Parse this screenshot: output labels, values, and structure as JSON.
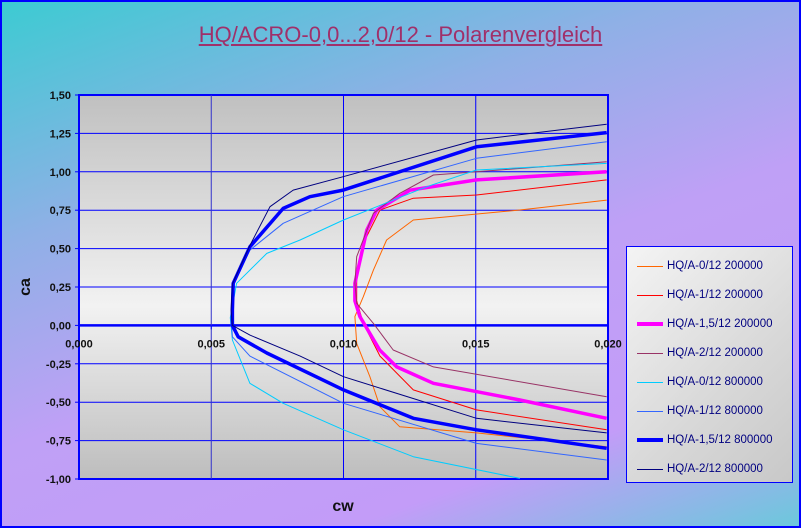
{
  "chart_data": {
    "type": "line",
    "title": "HQ/ACRO-0,0...2,0/12 - Polarenvergleich",
    "xlabel": "cw",
    "ylabel": "ca",
    "xlim": [
      0,
      0.02
    ],
    "ylim": [
      -1.0,
      1.5
    ],
    "xticks": [
      {
        "v": 0,
        "label": "0,000"
      },
      {
        "v": 0.005,
        "label": "0,005"
      },
      {
        "v": 0.01,
        "label": "0,010"
      },
      {
        "v": 0.015,
        "label": "0,015"
      },
      {
        "v": 0.02,
        "label": "0,020"
      }
    ],
    "yticks": [
      {
        "v": 1.5,
        "label": "1,50"
      },
      {
        "v": 1.25,
        "label": "1,25"
      },
      {
        "v": 1.0,
        "label": "1,00"
      },
      {
        "v": 0.75,
        "label": "0,75"
      },
      {
        "v": 0.5,
        "label": "0,50"
      },
      {
        "v": 0.25,
        "label": "0,25"
      },
      {
        "v": 0,
        "label": "0,00"
      },
      {
        "v": -0.25,
        "label": "-0,25"
      },
      {
        "v": -0.5,
        "label": "-0,50"
      },
      {
        "v": -0.75,
        "label": "-0,75"
      },
      {
        "v": -1.0,
        "label": "-1,00"
      }
    ],
    "grid": true,
    "legend_position": "right",
    "series": [
      {
        "name": "HQ/A-0/12 200000",
        "color": "#ff6600",
        "width": 1,
        "points": [
          [
            0.01995,
            0.816
          ],
          [
            0.01667,
            0.751
          ],
          [
            0.01264,
            0.686
          ],
          [
            0.01163,
            0.556
          ],
          [
            0.01113,
            0.36
          ],
          [
            0.01075,
            0.187
          ],
          [
            0.01043,
            0.057
          ],
          [
            0.0105,
            -0.117
          ],
          [
            0.011,
            -0.334
          ],
          [
            0.01138,
            -0.53
          ],
          [
            0.01213,
            -0.66
          ],
          [
            0.01503,
            -0.7
          ],
          [
            0.01995,
            -0.79
          ]
        ]
      },
      {
        "name": "HQ/A-1/12 200000",
        "color": "#ff0000",
        "width": 1,
        "points": [
          [
            0.01995,
            0.947
          ],
          [
            0.01503,
            0.849
          ],
          [
            0.01264,
            0.828
          ],
          [
            0.01138,
            0.751
          ],
          [
            0.01075,
            0.535
          ],
          [
            0.0105,
            0.317
          ],
          [
            0.0105,
            0.16
          ],
          [
            0.01075,
            0.013
          ],
          [
            0.01138,
            -0.2
          ],
          [
            0.01264,
            -0.42
          ],
          [
            0.01503,
            -0.55
          ],
          [
            0.01995,
            -0.68
          ]
        ]
      },
      {
        "name": "HQ/A-1,5/12 200000",
        "color": "#ff00ff",
        "width": 3.5,
        "points": [
          [
            0.01995,
            1.0
          ],
          [
            0.01503,
            0.947
          ],
          [
            0.01251,
            0.88
          ],
          [
            0.01125,
            0.75
          ],
          [
            0.01088,
            0.62
          ],
          [
            0.01043,
            0.274
          ],
          [
            0.01043,
            0.16
          ],
          [
            0.01062,
            0.057
          ],
          [
            0.01137,
            -0.16
          ],
          [
            0.01201,
            -0.27
          ],
          [
            0.0134,
            -0.377
          ],
          [
            0.01667,
            -0.486
          ],
          [
            0.01995,
            -0.605
          ]
        ]
      },
      {
        "name": "HQ/A-2/12 200000",
        "color": "#993366",
        "width": 1,
        "points": [
          [
            0.01995,
            1.066
          ],
          [
            0.01503,
            1.0
          ],
          [
            0.0134,
            0.979
          ],
          [
            0.01213,
            0.86
          ],
          [
            0.01113,
            0.73
          ],
          [
            0.0105,
            0.447
          ],
          [
            0.01043,
            0.274
          ],
          [
            0.0105,
            0.144
          ],
          [
            0.01113,
            0.013
          ],
          [
            0.01188,
            -0.16
          ],
          [
            0.0134,
            -0.27
          ],
          [
            0.01995,
            -0.464
          ]
        ]
      },
      {
        "name": "HQ/A-0/12 800000",
        "color": "#00ccff",
        "width": 1,
        "points": [
          [
            0.01995,
            1.055
          ],
          [
            0.01503,
            1.012
          ],
          [
            0.01315,
            0.903
          ],
          [
            0.01,
            0.686
          ],
          [
            0.00836,
            0.556
          ],
          [
            0.0071,
            0.469
          ],
          [
            0.00596,
            0.274
          ],
          [
            0.00572,
            0.05
          ],
          [
            0.0058,
            -0.095
          ],
          [
            0.00646,
            -0.377
          ],
          [
            0.00772,
            -0.507
          ],
          [
            0.01,
            -0.68
          ],
          [
            0.01264,
            -0.855
          ],
          [
            0.01667,
            -0.996
          ]
        ]
      },
      {
        "name": "HQ/A-1/12 800000",
        "color": "#3366ff",
        "width": 1,
        "points": [
          [
            0.01995,
            1.196
          ],
          [
            0.01503,
            1.088
          ],
          [
            0.00999,
            0.838
          ],
          [
            0.00772,
            0.665
          ],
          [
            0.00646,
            0.49
          ],
          [
            0.0058,
            0.25
          ],
          [
            0.00575,
            0.056
          ],
          [
            0.0058,
            -0.074
          ],
          [
            0.00646,
            -0.2
          ],
          [
            0.01,
            -0.507
          ],
          [
            0.01503,
            -0.768
          ],
          [
            0.01995,
            -0.876
          ]
        ]
      },
      {
        "name": "HQ/A-1,5/12 800000",
        "color": "#0000ff",
        "width": 3.5,
        "points": [
          [
            0.01995,
            1.255
          ],
          [
            0.01503,
            1.163
          ],
          [
            0.00999,
            0.881
          ],
          [
            0.00873,
            0.838
          ],
          [
            0.00772,
            0.762
          ],
          [
            0.00646,
            0.512
          ],
          [
            0.00583,
            0.274
          ],
          [
            0.0058,
            0.1
          ],
          [
            0.0058,
            0.0
          ],
          [
            0.00602,
            -0.074
          ],
          [
            0.0071,
            -0.18
          ],
          [
            0.01,
            -0.42
          ],
          [
            0.01264,
            -0.605
          ],
          [
            0.01503,
            -0.68
          ],
          [
            0.01995,
            -0.8
          ]
        ]
      },
      {
        "name": "HQ/A-2/12 800000",
        "color": "#000080",
        "width": 1,
        "points": [
          [
            0.01995,
            1.31
          ],
          [
            0.01503,
            1.207
          ],
          [
            0.00999,
            0.968
          ],
          [
            0.0081,
            0.881
          ],
          [
            0.00722,
            0.773
          ],
          [
            0.00646,
            0.52
          ],
          [
            0.0058,
            0.27
          ],
          [
            0.00575,
            0.1
          ],
          [
            0.0058,
            0.0
          ],
          [
            0.00646,
            -0.063
          ],
          [
            0.00836,
            -0.2
          ],
          [
            0.01,
            -0.334
          ],
          [
            0.01503,
            -0.605
          ],
          [
            0.01995,
            -0.7
          ]
        ]
      }
    ]
  }
}
